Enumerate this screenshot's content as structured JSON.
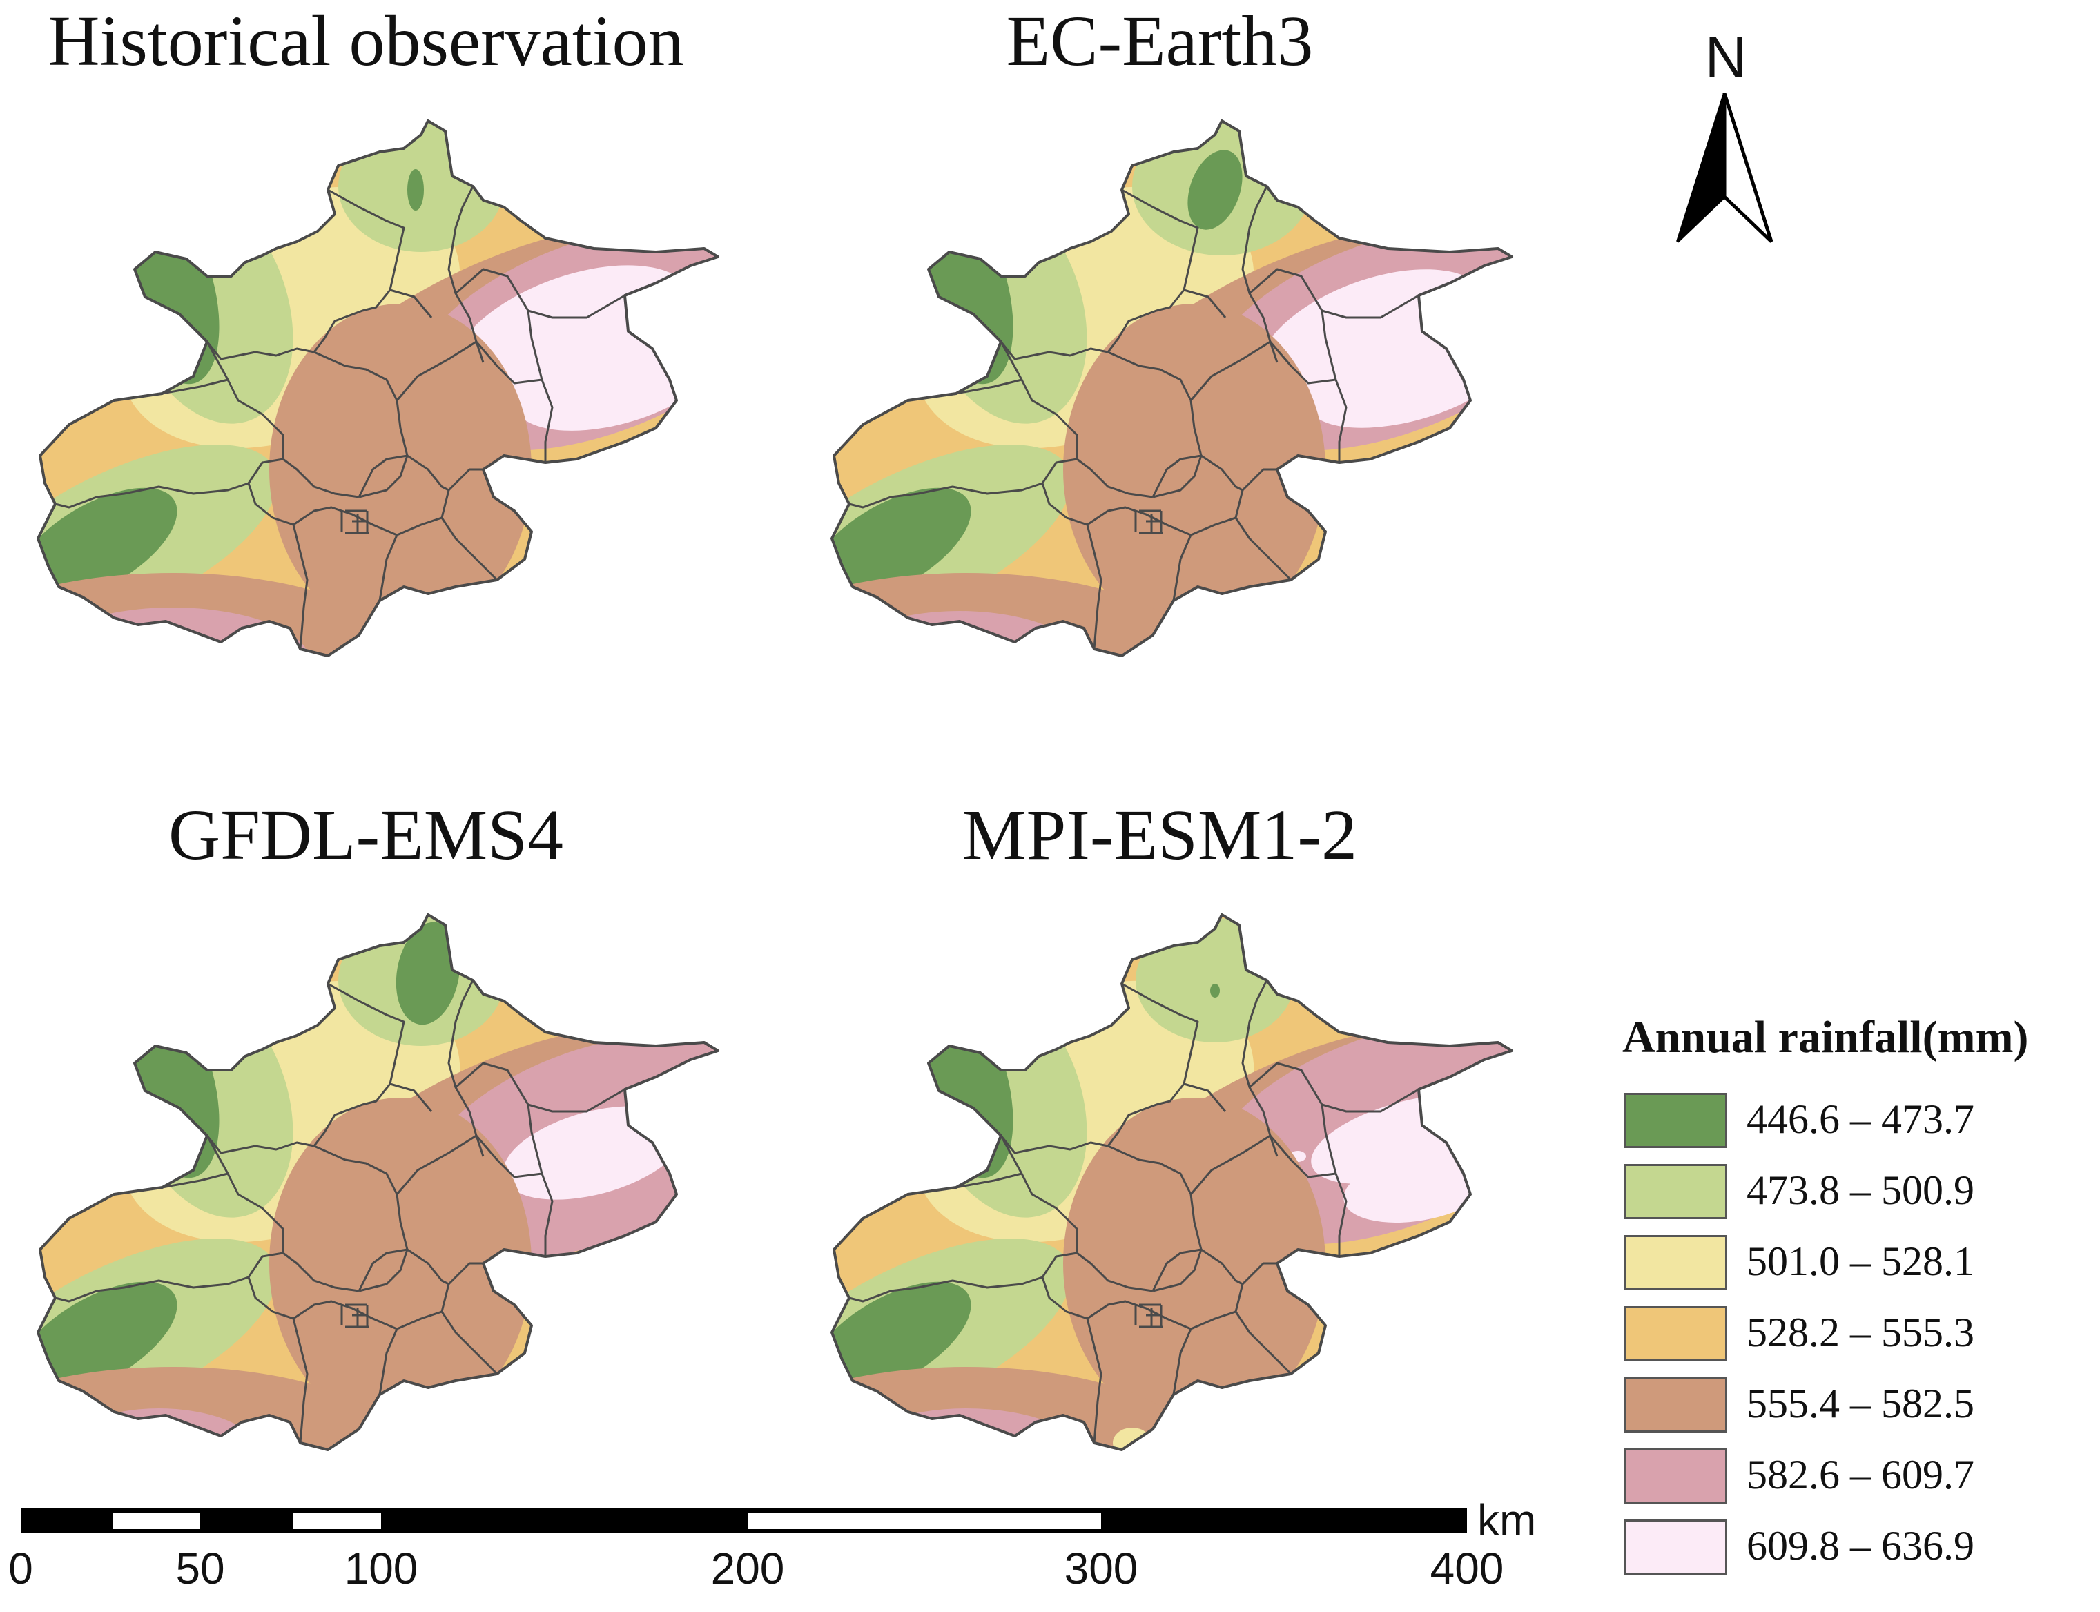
{
  "panels": [
    {
      "title": "Historical observation",
      "scheme": "historical"
    },
    {
      "title": "EC-Earth3",
      "scheme": "ecearth"
    },
    {
      "title": "GFDL-EMS4",
      "scheme": "gfdl"
    },
    {
      "title": "MPI-ESM1-2",
      "scheme": "mpi"
    }
  ],
  "north_arrow": {
    "label": "N"
  },
  "legend": {
    "title": "Annual rainfall(mm)",
    "classes": [
      {
        "label": "446.6 – 473.7",
        "color": "#6a9a55"
      },
      {
        "label": "473.8 – 500.9",
        "color": "#c4d790"
      },
      {
        "label": "501.0 – 528.1",
        "color": "#f2e6a1"
      },
      {
        "label": "528.2 – 555.3",
        "color": "#efc678"
      },
      {
        "label": "555.4 – 582.5",
        "color": "#cf9a7b"
      },
      {
        "label": "582.6 – 609.7",
        "color": "#d9a2ad"
      },
      {
        "label": "609.8 – 636.9",
        "color": "#fcebf7"
      }
    ]
  },
  "scale_bar": {
    "unit": "km",
    "ticks": [
      "0",
      "50",
      "100",
      "200",
      "300",
      "400"
    ]
  },
  "colors": {
    "boundary": "#4a4a4a",
    "bar": "#000000"
  }
}
